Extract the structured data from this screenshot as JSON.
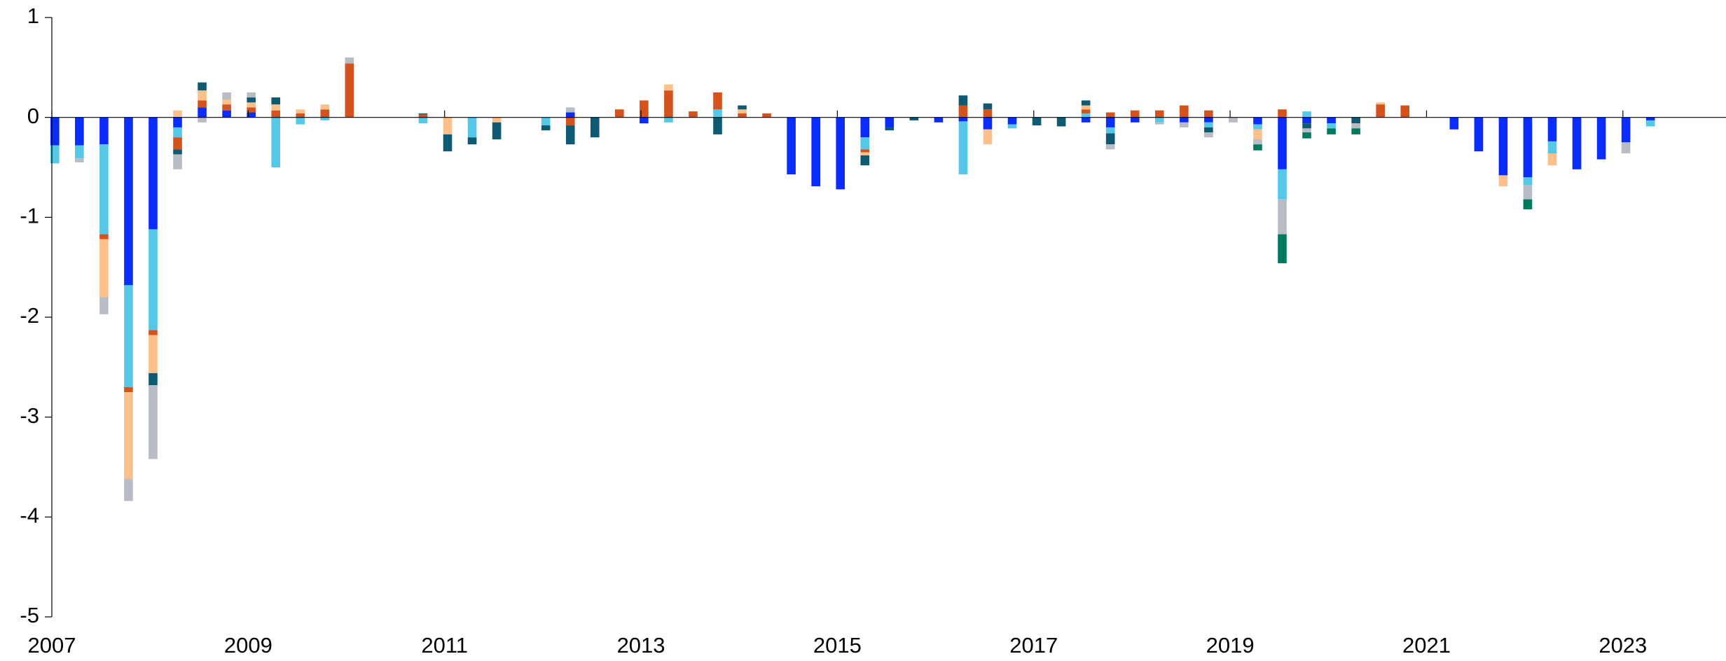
{
  "chart_data": {
    "type": "stacked_bar",
    "x": [
      2007,
      2007.25,
      2007.5,
      2007.75,
      2008,
      2008.25,
      2008.5,
      2008.75,
      2009,
      2009.25,
      2009.5,
      2009.75,
      2010,
      2010.25,
      2010.5,
      2010.75,
      2011,
      2011.25,
      2011.5,
      2011.75,
      2012,
      2012.25,
      2012.5,
      2012.75,
      2013,
      2013.25,
      2013.5,
      2013.75,
      2014,
      2014.25,
      2014.5,
      2014.75,
      2015,
      2015.25,
      2015.5,
      2015.75,
      2016,
      2016.25,
      2016.5,
      2016.75,
      2017,
      2017.25,
      2017.5,
      2017.75,
      2018,
      2018.25,
      2018.5,
      2018.75,
      2019,
      2019.25,
      2019.5,
      2019.75,
      2020,
      2020.25,
      2020.5,
      2020.75,
      2021,
      2021.25,
      2021.5,
      2021.75,
      2022,
      2022.25,
      2022.5,
      2022.75,
      2023,
      2023.25
    ],
    "series": [
      {
        "color": "#0a2cff",
        "values": [
          -0.28,
          -0.28,
          -0.27,
          -1.68,
          -1.12,
          -0.1,
          0.1,
          0.07,
          0.05,
          0,
          0,
          0,
          0,
          0,
          0,
          0,
          0,
          0,
          0,
          0,
          0,
          0.05,
          0,
          0,
          -0.06,
          0,
          0,
          0,
          0,
          0,
          -0.57,
          -0.69,
          -0.72,
          -0.2,
          -0.1,
          0,
          -0.05,
          -0.04,
          -0.12,
          -0.07,
          0,
          0,
          -0.05,
          -0.1,
          -0.05,
          0,
          -0.05,
          -0.05,
          0,
          -0.07,
          -0.52,
          -0.06,
          -0.06,
          0,
          0,
          0,
          0,
          -0.12,
          -0.34,
          -0.58,
          -0.6,
          -0.24,
          -0.52,
          -0.42,
          -0.25,
          -0.03
        ]
      },
      {
        "color": "#55c8e8",
        "values": [
          -0.18,
          -0.13,
          -0.9,
          -1.02,
          -1.01,
          -0.1,
          0,
          0,
          0,
          -0.5,
          -0.07,
          -0.03,
          0,
          0,
          0,
          -0.06,
          0,
          -0.2,
          0,
          0,
          -0.08,
          0,
          0,
          0,
          0,
          -0.05,
          0,
          0.08,
          0,
          0,
          0,
          0,
          0,
          -0.12,
          0,
          0,
          0,
          -0.53,
          0,
          -0.04,
          0,
          0,
          0.04,
          -0.06,
          0,
          -0.05,
          0,
          -0.05,
          0,
          -0.05,
          -0.3,
          0.06,
          -0.05,
          0,
          0,
          0,
          0,
          0,
          0,
          0,
          -0.08,
          -0.12,
          0,
          0,
          0,
          -0.06
        ]
      },
      {
        "color": "#d4521c",
        "values": [
          0,
          0,
          -0.05,
          -0.05,
          -0.05,
          -0.12,
          0.07,
          0.06,
          0.05,
          0.07,
          0.04,
          0.08,
          0.54,
          0,
          0,
          0.03,
          0,
          0,
          0,
          0,
          0,
          -0.08,
          0,
          0.08,
          0.17,
          0.27,
          0.06,
          0.17,
          0.04,
          0.04,
          0,
          0,
          0,
          -0.03,
          0,
          0,
          0,
          0.12,
          0.08,
          0,
          0,
          0,
          0.04,
          0.05,
          0.07,
          0.07,
          0.12,
          0.07,
          0,
          0,
          0.08,
          0,
          0,
          0,
          0.13,
          0.12,
          0,
          0,
          0,
          0,
          0,
          0,
          0,
          0,
          0,
          0
        ]
      },
      {
        "color": "#fdc08a",
        "values": [
          0,
          0,
          -0.58,
          -0.87,
          -0.38,
          0.07,
          0.1,
          0.05,
          0.05,
          0.06,
          0.04,
          0.05,
          0,
          0,
          0,
          0,
          -0.17,
          0,
          -0.05,
          0,
          0,
          0,
          0,
          0,
          0,
          0.06,
          0,
          0,
          0.04,
          0,
          0,
          0,
          0,
          -0.03,
          0,
          0,
          0,
          0,
          -0.15,
          0,
          0,
          0,
          0.04,
          0,
          0,
          0,
          0,
          0,
          0,
          -0.1,
          0,
          0,
          0,
          0,
          0.02,
          0,
          0,
          0,
          0,
          -0.11,
          0,
          -0.12,
          0,
          0,
          0,
          0
        ]
      },
      {
        "color": "#0e5a73",
        "values": [
          0,
          0,
          0,
          0,
          -0.12,
          -0.05,
          0.08,
          0,
          0.05,
          0.07,
          0,
          0,
          0,
          0,
          0,
          0.01,
          -0.17,
          -0.07,
          -0.17,
          0,
          -0.05,
          -0.19,
          -0.2,
          0,
          0,
          0,
          0,
          -0.17,
          0.04,
          0,
          0,
          0,
          0,
          -0.1,
          -0.03,
          -0.03,
          0,
          0.1,
          0.06,
          0,
          -0.08,
          -0.09,
          0.05,
          -0.11,
          0,
          0,
          0,
          -0.05,
          0,
          0,
          0,
          -0.05,
          0,
          -0.06,
          0,
          0,
          0,
          0,
          0,
          0,
          0,
          0,
          0,
          0,
          0,
          0
        ]
      },
      {
        "color": "#b8bcc4",
        "values": [
          0,
          -0.04,
          -0.17,
          -0.22,
          -0.74,
          -0.15,
          -0.05,
          0.07,
          0.05,
          0,
          0,
          0,
          0.06,
          0,
          0,
          0,
          0,
          0,
          0,
          0,
          0,
          0.05,
          0,
          0,
          0,
          0,
          0,
          0,
          0,
          0,
          0,
          0,
          0,
          0,
          0,
          0,
          0,
          0,
          0,
          0,
          0,
          0,
          0,
          -0.05,
          0,
          -0.02,
          -0.05,
          -0.05,
          -0.05,
          -0.05,
          -0.35,
          -0.04,
          0,
          -0.05,
          0,
          0,
          0,
          0,
          0,
          0,
          -0.14,
          0,
          0,
          0,
          -0.11,
          0
        ]
      },
      {
        "color": "#007a5e",
        "values": [
          0,
          0,
          0,
          0,
          0,
          0,
          0,
          0,
          0,
          0,
          0,
          0,
          0,
          0,
          0,
          0,
          0,
          0,
          0,
          0,
          0,
          0,
          0,
          0,
          0,
          0,
          0,
          0,
          0,
          0,
          0,
          0,
          0,
          0,
          0,
          0,
          0,
          0,
          0,
          0,
          0,
          0,
          0,
          0,
          0,
          0,
          0,
          0,
          0,
          -0.06,
          -0.29,
          -0.06,
          -0.06,
          -0.06,
          0,
          0,
          0,
          0,
          0,
          0,
          -0.1,
          0,
          0,
          0,
          0,
          0
        ]
      }
    ],
    "xlim": [
      2007,
      2024.05
    ],
    "xticks": [
      2007,
      2009,
      2011,
      2013,
      2015,
      2017,
      2019,
      2021,
      2023
    ],
    "ylim": [
      -5,
      1
    ],
    "yticks": [
      1,
      0,
      -1,
      -2,
      -3,
      -4,
      -5
    ]
  }
}
